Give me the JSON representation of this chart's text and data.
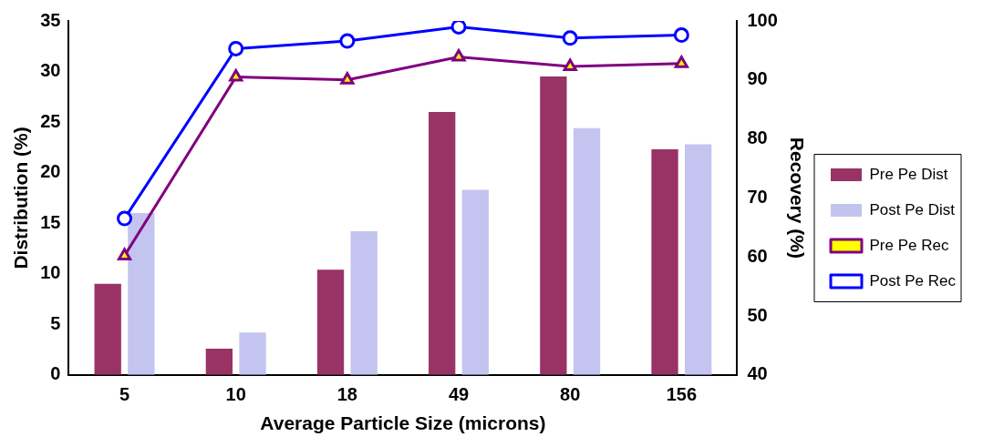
{
  "chart_data": {
    "type": "bar",
    "xlabel": "Average Particle Size (microns)",
    "ylabel": "Distribution (%)",
    "y2label": "Recovery (%)",
    "categories": [
      "5",
      "10",
      "18",
      "49",
      "80",
      "156"
    ],
    "ylim": [
      0,
      35
    ],
    "yticks": [
      0,
      5,
      10,
      15,
      20,
      25,
      30,
      35
    ],
    "y2lim": [
      40,
      100
    ],
    "y2ticks": [
      40,
      50,
      60,
      70,
      80,
      90,
      100
    ],
    "grid": false,
    "legend": "right",
    "series": [
      {
        "name": "Pre Pe Dist",
        "color": "#993366",
        "values": [
          9,
          2.6,
          10.4,
          26,
          29.5,
          22.3
        ]
      },
      {
        "name": "Post Pe Dist",
        "color": "#c4c4f0",
        "values": [
          16,
          4.2,
          14.2,
          18.3,
          24.4,
          22.8
        ]
      },
      {
        "name": "Pre Pe Rec",
        "type": "line",
        "axis": "y2",
        "color": "#800080",
        "marker": "triangle",
        "values": [
          60.2,
          90.5,
          90,
          93.9,
          92.3,
          92.8
        ]
      },
      {
        "name": "Post Pe Rec",
        "type": "line",
        "axis": "y2",
        "color": "#0000ff",
        "marker": "circle",
        "values": [
          66.5,
          95.3,
          96.6,
          99,
          97.1,
          97.6
        ]
      }
    ]
  }
}
